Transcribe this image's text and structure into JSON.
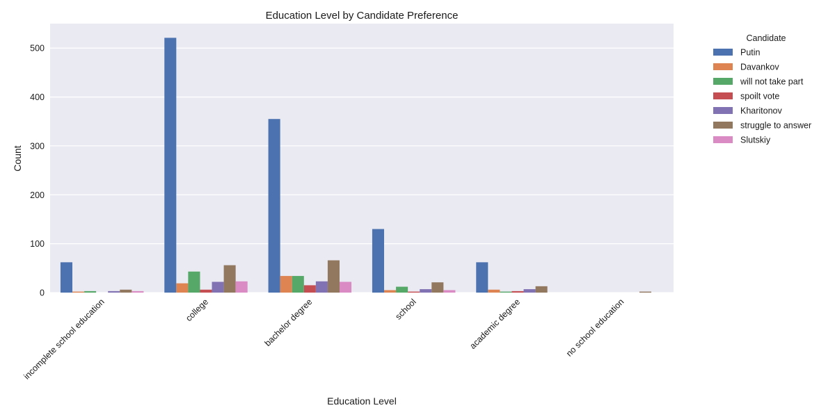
{
  "chart_data": {
    "type": "bar",
    "title": "Education Level by Candidate Preference",
    "xlabel": "Education Level",
    "ylabel": "Count",
    "ylim": [
      0,
      550
    ],
    "yticks": [
      0,
      100,
      200,
      300,
      400,
      500
    ],
    "grid": true,
    "legend": {
      "title": "Candidate",
      "placement": "outside-top-right"
    },
    "categories": [
      "incomplete school education",
      "college",
      "bachelor degree",
      "school",
      "academic degree",
      "no school education"
    ],
    "series": [
      {
        "name": "Putin",
        "color": "#4c72b0",
        "values": [
          62,
          521,
          355,
          130,
          62,
          0
        ]
      },
      {
        "name": "Davankov",
        "color": "#dd8452",
        "values": [
          2,
          19,
          34,
          5,
          6,
          0
        ]
      },
      {
        "name": "will not take part",
        "color": "#55a868",
        "values": [
          3,
          43,
          34,
          12,
          2,
          0
        ]
      },
      {
        "name": "spoilt vote",
        "color": "#c44e52",
        "values": [
          0,
          6,
          15,
          2,
          3,
          0
        ]
      },
      {
        "name": "Kharitonov",
        "color": "#8172b3",
        "values": [
          3,
          22,
          23,
          7,
          7,
          0
        ]
      },
      {
        "name": "struggle to answer",
        "color": "#937860",
        "values": [
          6,
          56,
          66,
          21,
          13,
          2
        ]
      },
      {
        "name": "Slutskiy",
        "color": "#da8bc3",
        "values": [
          3,
          23,
          22,
          5,
          0,
          0
        ]
      }
    ]
  }
}
